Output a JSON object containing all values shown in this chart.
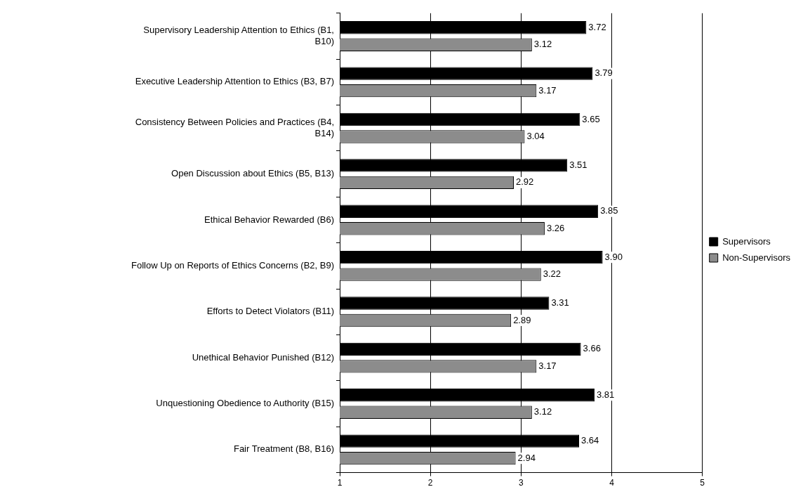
{
  "chart_data": {
    "type": "bar",
    "orientation": "horizontal",
    "categories": [
      "Supervisory Leadership Attention to Ethics (B1, B10)",
      "Executive Leadership Attention to Ethics (B3, B7)",
      "Consistency Between Policies and Practices (B4, B14)",
      "Open Discussion about Ethics (B5, B13)",
      "Ethical Behavior Rewarded (B6)",
      "Follow Up on Reports of Ethics Concerns (B2, B9)",
      "Efforts to Detect Violators (B11)",
      "Unethical Behavior Punished (B12)",
      "Unquestioning Obedience to Authority (B15)",
      "Fair Treatment (B8, B16)"
    ],
    "series": [
      {
        "name": "Supervisors",
        "color": "#000000",
        "values": [
          3.72,
          3.79,
          3.65,
          3.51,
          3.85,
          3.9,
          3.31,
          3.66,
          3.81,
          3.64
        ],
        "value_labels": [
          "3.72",
          "3.79",
          "3.65",
          "3.51",
          "3.85",
          "3.90",
          "3.31",
          "3.66",
          "3.81",
          "3.64"
        ]
      },
      {
        "name": "Non-Supervisors",
        "color": "#8c8c8c",
        "values": [
          3.12,
          3.17,
          3.04,
          2.92,
          3.26,
          3.22,
          2.89,
          3.17,
          3.12,
          2.94
        ],
        "value_labels": [
          "3.12",
          "3.17",
          "3.04",
          "2.92",
          "3.26",
          "3.22",
          "2.89",
          "3.17",
          "3.12",
          "2.94"
        ]
      }
    ],
    "xlim": [
      1,
      5
    ],
    "xticks": [
      1,
      2,
      3,
      4,
      5
    ],
    "grid": "x",
    "legend": "right"
  }
}
